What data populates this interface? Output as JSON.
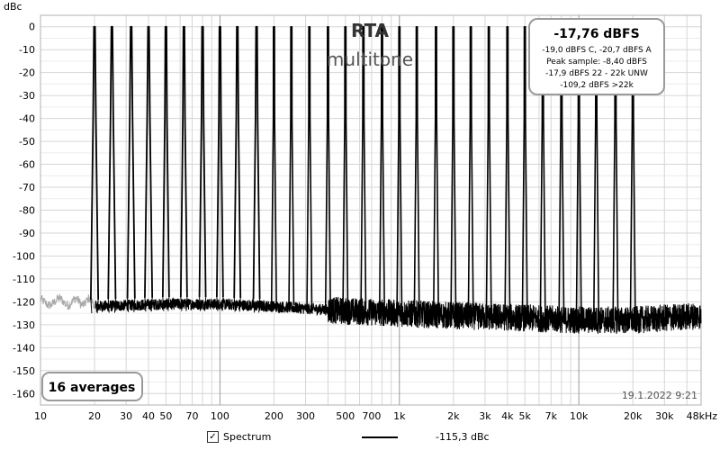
{
  "chart_data": {
    "type": "line",
    "title": "RTA",
    "subtitle": "multitone",
    "ylabel": "dBc",
    "xscale": "log",
    "xlim": [
      10,
      48000
    ],
    "ylim": [
      -165,
      5
    ],
    "yticks": [
      0,
      -10,
      -20,
      -30,
      -40,
      -50,
      -60,
      -70,
      -80,
      -90,
      -100,
      -110,
      -120,
      -130,
      -140,
      -150,
      -160
    ],
    "ytick_labels": [
      "0",
      "-10",
      "-20",
      "-30",
      "-40",
      "-50",
      "-60",
      "-70",
      "-80",
      "-90",
      "-100",
      "-110",
      "-120",
      "-130",
      "-140",
      "-150",
      "-160"
    ],
    "xticks": [
      10,
      20,
      30,
      40,
      50,
      70,
      100,
      200,
      300,
      500,
      700,
      1000,
      2000,
      3000,
      4000,
      5000,
      7000,
      10000,
      20000,
      30000,
      48000
    ],
    "xtick_labels": [
      "10",
      "20",
      "30",
      "40",
      "50",
      "70",
      "100",
      "200",
      "300",
      "500",
      "700",
      "1k",
      "2k",
      "3k",
      "4k",
      "5k",
      "7k",
      "10k",
      "20k",
      "30k",
      "48kHz"
    ],
    "grid": true,
    "series": [
      {
        "name": "Spectrum",
        "color": "#000000",
        "tone_frequencies_hz": [
          20,
          25,
          32,
          40,
          50,
          63,
          80,
          100,
          125,
          160,
          200,
          250,
          315,
          400,
          500,
          630,
          800,
          1000,
          1250,
          1600,
          2000,
          2500,
          3150,
          4000,
          5000,
          6300,
          8000,
          10000,
          12500,
          16000,
          20000
        ],
        "tone_level_dbc": 0,
        "noise_floor_points": [
          {
            "x": 20,
            "y": -122
          },
          {
            "x": 50,
            "y": -121
          },
          {
            "x": 100,
            "y": -121
          },
          {
            "x": 200,
            "y": -122
          },
          {
            "x": 500,
            "y": -124
          },
          {
            "x": 1000,
            "y": -125
          },
          {
            "x": 2000,
            "y": -126
          },
          {
            "x": 5000,
            "y": -127
          },
          {
            "x": 10000,
            "y": -128
          },
          {
            "x": 20000,
            "y": -128
          },
          {
            "x": 48000,
            "y": -126
          }
        ],
        "below_20hz": {
          "color": "#aaaaaa",
          "points": [
            {
              "x": 10,
              "y": -120
            },
            {
              "x": 12,
              "y": -118
            },
            {
              "x": 14,
              "y": -121
            },
            {
              "x": 16,
              "y": -119
            },
            {
              "x": 19.5,
              "y": -120
            }
          ]
        }
      }
    ],
    "level_box": {
      "main": "-17,76 dBFS",
      "lines": [
        "-19,0 dBFS C, -20,7 dBFS A",
        "Peak sample: -8,40 dBFS",
        "-17,9 dBFS 22 - 22k UNW",
        "-109,2 dBFS >22k"
      ]
    },
    "averages_label": "16 averages",
    "timestamp": "19.1.2022 9:21"
  },
  "legend": {
    "checkbox_mark": "✓",
    "series_label": "Spectrum",
    "value": "-115,3 dBc"
  },
  "colors": {
    "plot_border": "#b0b0b0",
    "grid_minor": "#d6d6d6",
    "grid_major": "#9a9a9a",
    "box_border": "#9a9a9a",
    "title": "#333333",
    "subtitle": "#555555"
  }
}
